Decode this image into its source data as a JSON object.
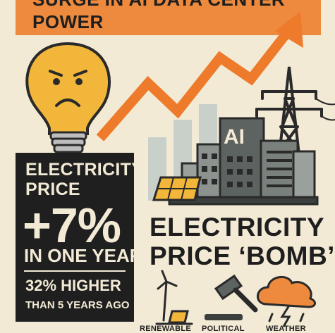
{
  "banner": {
    "line1": "SURGE IN AI DATA CENTER",
    "line2": "POWER"
  },
  "building_sign": "AI",
  "price_box": {
    "label_line1": "ELECTRICITY",
    "label_line2": "PRICE",
    "increase": "+7%",
    "period": "IN ONE YEAR",
    "higher": "32% HIGHER",
    "comparison": "THAN 5 YEARS AGO"
  },
  "headline": {
    "line1": "ELECTRICITY",
    "line2": "PRICE ‘BOMB’"
  },
  "factors": [
    {
      "label": "RENEWABLE",
      "icon": "wind-solar-icon"
    },
    {
      "label": "POLITICAL",
      "icon": "gavel-icon"
    },
    {
      "label": "WEATHER",
      "icon": "storm-cloud-icon"
    }
  ],
  "colors": {
    "background": "#f3ead6",
    "accent_orange": "#ee8a3d",
    "dark": "#1f1f1f",
    "bulb_yellow": "#f2b63a"
  }
}
